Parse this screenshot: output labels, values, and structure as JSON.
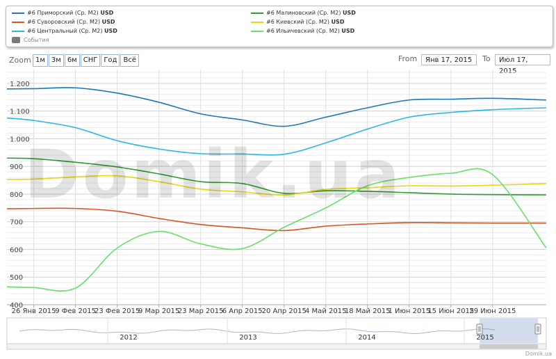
{
  "legend": {
    "items": [
      {
        "label": "#6 Приморский (Ср. М2)",
        "unit": "USD",
        "color": "#1f77b4"
      },
      {
        "label": "#6 Суворовский (Ср. М2)",
        "unit": "USD",
        "color": "#d9531e"
      },
      {
        "label": "#6 Центральный (Ср. М2)",
        "unit": "USD",
        "color": "#26b8e6"
      },
      {
        "label": "#6 Малиновский (Ср. М2)",
        "unit": "USD",
        "color": "#2e9e2e"
      },
      {
        "label": "#6 Киевский (Ср. М2)",
        "unit": "USD",
        "color": "#e8d614"
      },
      {
        "label": "#6 Ильичевский (Ср. М2)",
        "unit": "USD",
        "color": "#66e066"
      }
    ],
    "events_label": "События"
  },
  "toolbar": {
    "zoom_label": "Zoom",
    "zoom_buttons": [
      "1м",
      "3м",
      "6м",
      "СНГ",
      "Год",
      "Всё"
    ],
    "from_label": "From",
    "from_value": "Янв 17, 2015",
    "to_label": "To",
    "to_value": "Июл 17, 2015"
  },
  "watermark": "Domik.ua",
  "credit": "Domik.ua",
  "chart_data": {
    "type": "line",
    "x_labels": [
      "26 Янв 2015",
      "9 Фев 2015",
      "23 Фев 2015",
      "9 Мар 2015",
      "23 Мар 2015",
      "6 Апр 2015",
      "20 Апр 2015",
      "4 Май 2015",
      "18 Май 2015",
      "1 Июн 2015",
      "15 Июн 2015",
      "29 Июн 2015"
    ],
    "x": [
      "2015-01-17",
      "2015-01-26",
      "2015-02-09",
      "2015-02-23",
      "2015-03-09",
      "2015-03-23",
      "2015-04-06",
      "2015-04-20",
      "2015-05-04",
      "2015-05-18",
      "2015-06-01",
      "2015-06-15",
      "2015-06-29",
      "2015-07-17"
    ],
    "ylim": [
      400,
      1250
    ],
    "y_ticks": [
      400,
      500,
      600,
      700,
      800,
      900,
      "1.000",
      "1.100",
      "1.200"
    ],
    "y_tick_values": [
      400,
      500,
      600,
      700,
      800,
      900,
      1000,
      1100,
      1200
    ],
    "series": [
      {
        "name": "#6 Приморский (Ср. М2)",
        "values": [
          1180,
          1181,
          1184,
          1165,
          1132,
          1090,
          1068,
          1045,
          1078,
          1112,
          1140,
          1143,
          1146,
          1140
        ]
      },
      {
        "name": "#6 Суворовский (Ср. М2)",
        "values": [
          747,
          748,
          748,
          738,
          712,
          690,
          678,
          668,
          684,
          692,
          697,
          696,
          695,
          695
        ]
      },
      {
        "name": "#6 Центральный (Ср. М2)",
        "values": [
          1075,
          1066,
          1040,
          993,
          963,
          946,
          945,
          944,
          985,
          1035,
          1078,
          1095,
          1105,
          1112
        ]
      },
      {
        "name": "#6 Малиновский (Ср. М2)",
        "values": [
          930,
          928,
          915,
          898,
          873,
          845,
          838,
          803,
          812,
          810,
          805,
          800,
          798,
          797
        ]
      },
      {
        "name": "#6 Киевский (Ср. М2)",
        "values": [
          853,
          854,
          862,
          866,
          845,
          818,
          808,
          797,
          817,
          823,
          830,
          829,
          832,
          838
        ]
      },
      {
        "name": "#6 Ильичевский (Ср. М2)",
        "values": [
          465,
          462,
          460,
          605,
          665,
          620,
          603,
          680,
          750,
          830,
          860,
          875,
          870,
          605
        ]
      }
    ],
    "navigator": {
      "years": [
        "2012",
        "2013",
        "2014",
        "2015"
      ]
    },
    "grid": true,
    "legend_position": "top"
  }
}
